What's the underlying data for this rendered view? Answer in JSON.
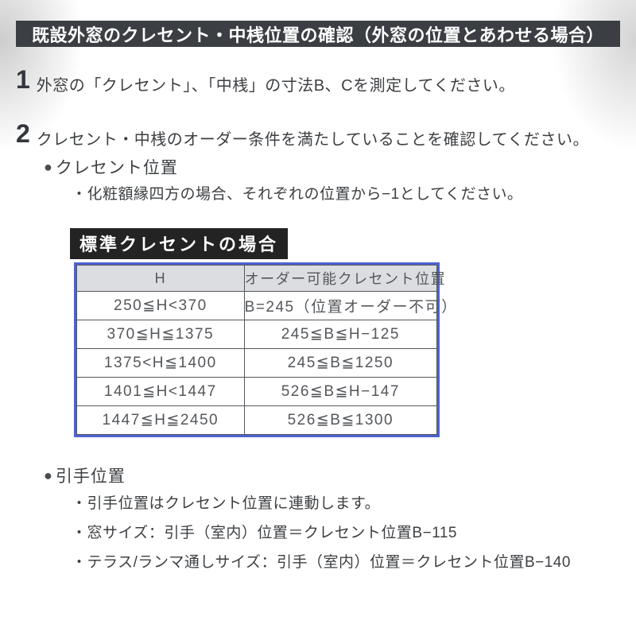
{
  "page": {
    "title_bar": "既設外窓のクレセント・中桟位置の確認（外窓の位置とあわせる場合）",
    "steps": [
      {
        "number": "1",
        "text": "外窓の「クレセント」、「中桟」の寸法B、Cを測定してください。"
      },
      {
        "number": "2",
        "text": "クレセント・中桟のオーダー条件を満たしていることを確認してください。"
      }
    ],
    "crescent_section": {
      "bullet": "●",
      "label": "クレセント位置",
      "note": "・化粧額縁四方の場合、それぞれの位置から−1としてください。",
      "table_title": "標準クレセントの場合"
    },
    "table": {
      "headers": [
        "H",
        "オーダー可能クレセント位置"
      ],
      "rows": [
        [
          "250≦H<370",
          "B=245（位置オーダー不可）"
        ],
        [
          "370≦H≦1375",
          "245≦B≦H−125"
        ],
        [
          "1375<H≦1400",
          "245≦B≦1250"
        ],
        [
          "1401≦H<1447",
          "526≦B≦H−147"
        ],
        [
          "1447≦H≦2450",
          "526≦B≦1300"
        ]
      ]
    },
    "handle_section": {
      "bullet": "●",
      "label": "引手位置",
      "items": [
        "・引手位置はクレセント位置に連動します。",
        "・窓サイズ：引手（室内）位置＝クレセント位置B−115",
        "・テラス/ランマ通しサイズ：引手（室内）位置＝クレセント位置B−140"
      ]
    },
    "colors": {
      "title_bar_bg": "#3b3e42",
      "table_title_bg": "#232323",
      "table_border": "#4e62cf",
      "table_header_bg": "#dcdde0",
      "grid_line": "#54575b",
      "body_text": "#3c3f42"
    }
  }
}
